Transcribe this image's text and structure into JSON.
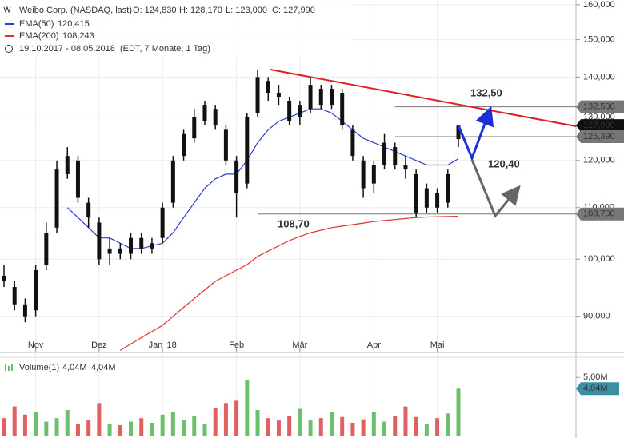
{
  "chart_data": {
    "type": "candlestick",
    "title": "Weibo Corp. (NASDAQ, last)",
    "header": {
      "open": "O: 124,830",
      "high": "H: 128,170",
      "low": "L: 123,000",
      "close": "C: 127,990",
      "period": "19.10.2017 - 08.05.2018",
      "period_note": "(EDT, 7 Monate, 1 Tag)"
    },
    "categories": [
      null,
      null,
      null,
      "Nov",
      null,
      null,
      null,
      null,
      null,
      "Dez",
      null,
      null,
      null,
      null,
      null,
      "Jan '18",
      null,
      null,
      null,
      null,
      null,
      null,
      "Feb",
      null,
      null,
      null,
      null,
      null,
      "Mär",
      null,
      null,
      null,
      null,
      null,
      null,
      "Apr",
      null,
      null,
      null,
      null,
      null,
      "Mai",
      null,
      null
    ],
    "open": [
      97,
      95,
      92,
      91,
      99,
      106,
      117,
      120,
      111,
      107,
      101,
      102,
      101,
      104,
      102,
      104,
      111,
      121,
      125,
      129,
      132,
      127,
      120,
      115,
      131,
      139,
      136,
      134,
      130,
      132,
      137,
      133,
      136,
      127,
      120,
      115,
      119,
      123,
      119,
      117,
      110,
      113,
      111,
      124.83
    ],
    "high": [
      99,
      96,
      93,
      99,
      107,
      120,
      123,
      121,
      112,
      108,
      104,
      103,
      105,
      105,
      104,
      111,
      121,
      127,
      132,
      134,
      133,
      128,
      121,
      131,
      142,
      140,
      138,
      135,
      134,
      140,
      138,
      138,
      137,
      128,
      121,
      120,
      126,
      124,
      121,
      118,
      115,
      114,
      118,
      128.17
    ],
    "low": [
      95,
      91,
      89,
      90,
      98,
      105,
      116,
      111,
      106,
      99,
      99,
      100,
      100,
      101,
      101,
      103,
      110,
      120,
      124,
      128,
      127,
      119,
      108,
      114,
      130,
      134,
      133,
      128,
      128,
      131,
      132,
      132,
      127,
      120,
      112,
      113,
      118,
      118,
      116,
      108,
      109,
      109,
      110,
      123
    ],
    "close": [
      96,
      92,
      90,
      98,
      105,
      118,
      121,
      112,
      108,
      100,
      102,
      101,
      104,
      102,
      103,
      110,
      120,
      126,
      130,
      133,
      128,
      120,
      113,
      130,
      140,
      136,
      135,
      129,
      133,
      138,
      133,
      137,
      128,
      121,
      114,
      119,
      124,
      119,
      118,
      109,
      114,
      110,
      117,
      127.99
    ],
    "candle_color": "#111111",
    "log_scale": true,
    "grid": true,
    "ylim": [
      84.3,
      161.4
    ],
    "yticks": [
      {
        "value": 90,
        "label": "90,000"
      },
      {
        "value": 100,
        "label": "100,000"
      },
      {
        "value": 110,
        "label": "110,000"
      },
      {
        "value": 120,
        "label": "120,000"
      },
      {
        "value": 130,
        "label": "130,000"
      },
      {
        "value": 140,
        "label": "140,000"
      },
      {
        "value": 150,
        "label": "150,000"
      },
      {
        "value": 160,
        "label": "160,000"
      }
    ],
    "series": [
      {
        "name": "EMA(50)",
        "color": "#2a3fd0",
        "value_label": "120,415",
        "values": [
          null,
          null,
          null,
          null,
          null,
          null,
          110,
          108,
          106,
          104,
          104,
          103,
          102,
          102,
          102.5,
          103,
          105,
          108,
          111,
          114,
          116,
          117,
          117,
          120,
          124,
          127,
          129,
          130,
          131,
          132,
          132,
          131,
          129,
          127,
          125,
          124,
          123,
          122,
          121,
          120,
          119,
          119,
          119,
          120.415
        ]
      },
      {
        "name": "EMA(200)",
        "color": "#e03030",
        "value_label": "108,243",
        "values": [
          null,
          null,
          null,
          null,
          null,
          null,
          null,
          null,
          null,
          null,
          null,
          84.5,
          85.5,
          86.5,
          87.5,
          88.5,
          90,
          91.5,
          93,
          94.5,
          96,
          97,
          98,
          99,
          100.5,
          101.5,
          102.5,
          103.5,
          104.3,
          105,
          105.5,
          106,
          106.3,
          106.6,
          106.9,
          107.2,
          107.4,
          107.6,
          107.8,
          108,
          108.1,
          108.15,
          108.2,
          108.243
        ]
      }
    ],
    "levels": [
      {
        "value": 132.5,
        "label": "132,500",
        "color": "#777777"
      },
      {
        "value": 127.99,
        "label": "127,990",
        "color": "#111111"
      },
      {
        "value": 125.39,
        "label": "125,390",
        "color": "#777777"
      },
      {
        "value": 108.7,
        "label": "108,700",
        "color": "#777777"
      }
    ],
    "annotations": [
      {
        "text": "132,50",
        "color": "#1a2fd8"
      },
      {
        "text": "120,40",
        "color": "#1a2fd8"
      },
      {
        "text": "108,70",
        "color": "#666666"
      }
    ],
    "volume": {
      "name": "Volume(1)",
      "legend_values": [
        "4,04M",
        "4,04M"
      ],
      "values": [
        1.5,
        2.5,
        1.8,
        2.0,
        1.2,
        1.5,
        2.2,
        1.0,
        1.3,
        2.8,
        1.0,
        0.9,
        1.2,
        1.5,
        1.1,
        1.8,
        2.0,
        1.3,
        1.7,
        1.0,
        2.4,
        2.8,
        3.0,
        4.8,
        2.2,
        1.5,
        1.3,
        1.7,
        2.3,
        1.3,
        1.5,
        2.0,
        1.6,
        1.1,
        1.4,
        2.0,
        1.2,
        1.7,
        2.5,
        1.6,
        1.0,
        1.5,
        1.9,
        4.04
      ],
      "value_label": "4,04M",
      "ylim": [
        0,
        6.6
      ],
      "yticks": [
        {
          "value": 5,
          "label": "5,00M"
        }
      ],
      "up_color": "#6cbf6c",
      "down_color": "#e06060",
      "marker_color": "#3a8fa3"
    }
  }
}
